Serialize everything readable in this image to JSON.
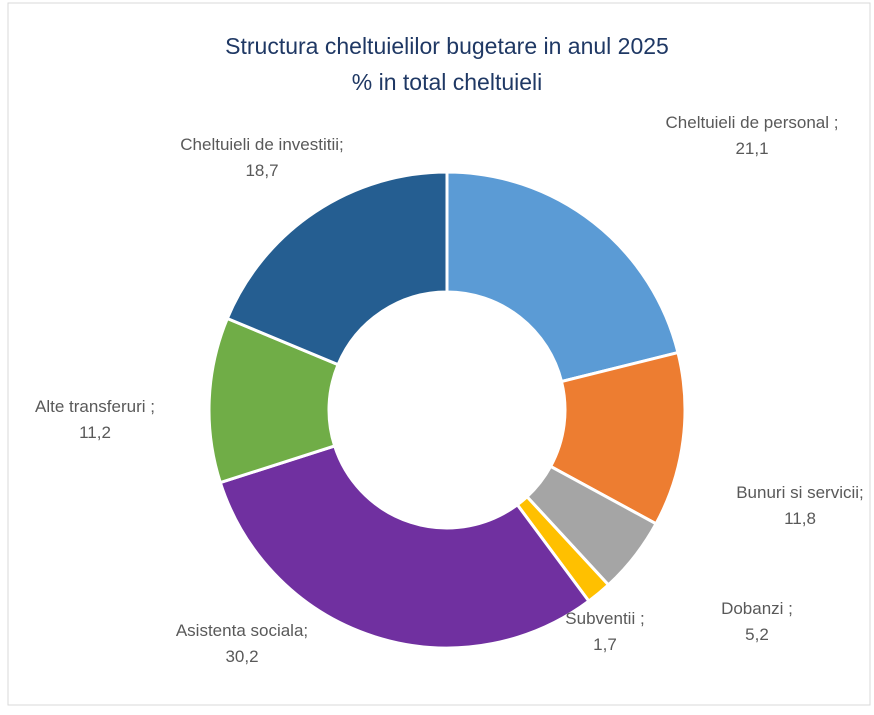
{
  "chart_data": {
    "type": "donut",
    "title": "Structura cheltuielilor bugetare in anul 2025",
    "subtitle": "% in total cheltuieli",
    "categories": [
      "Cheltuieli de personal ;",
      "Bunuri si servicii;",
      "Dobanzi ;",
      "Subventii ;",
      "Asistenta sociala;",
      "Alte transferuri ;",
      "Cheltuieli de investitii;"
    ],
    "values": [
      21.1,
      11.8,
      5.2,
      1.7,
      30.2,
      11.2,
      18.7
    ],
    "value_labels": [
      "21,1",
      "11,8",
      "5,2",
      "1,7",
      "30,2",
      "11,2",
      "18,7"
    ],
    "colors": [
      "#5b9bd5",
      "#ed7d31",
      "#a5a5a5",
      "#ffc000",
      "#7030a0",
      "#70ad47",
      "#255e91"
    ]
  }
}
